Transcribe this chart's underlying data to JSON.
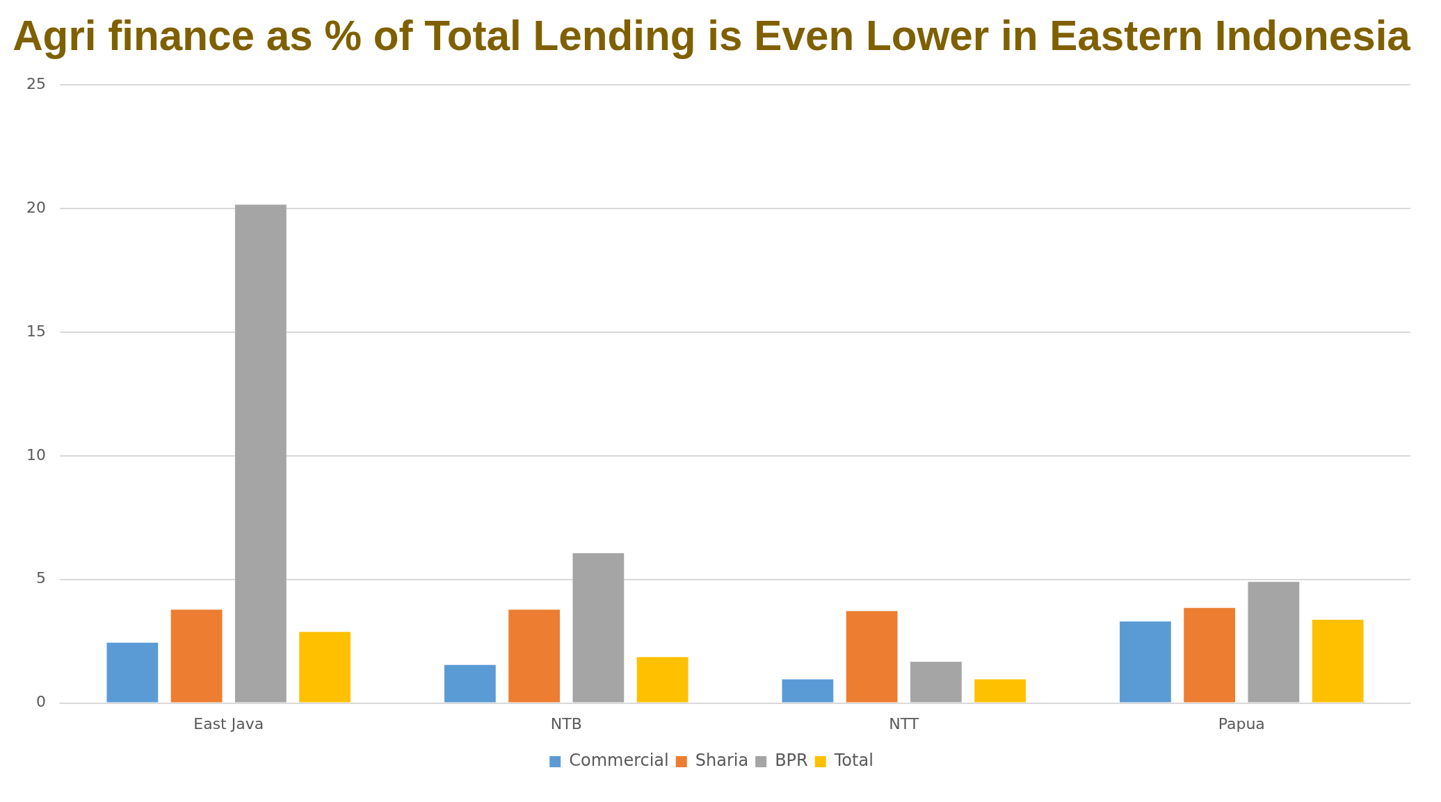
{
  "chart_data": {
    "type": "bar",
    "title": "Agri finance as % of Total Lending is Even Lower in Eastern Indonesia",
    "categories": [
      "East Java",
      "NTB",
      "NTT",
      "Papua"
    ],
    "series": [
      {
        "name": "Commercial",
        "color": "#5b9bd5",
        "values": [
          2.44,
          1.54,
          0.96,
          3.3
        ]
      },
      {
        "name": "Sharia",
        "color": "#ed7d31",
        "values": [
          3.78,
          3.78,
          3.72,
          3.85
        ]
      },
      {
        "name": "BPR",
        "color": "#a5a5a5",
        "values": [
          20.16,
          6.06,
          1.67,
          4.9
        ]
      },
      {
        "name": "Total",
        "color": "#ffc000",
        "values": [
          2.88,
          1.86,
          0.96,
          3.37
        ]
      }
    ],
    "ylim": [
      0,
      25
    ],
    "yticks": [
      0,
      5,
      10,
      15,
      20,
      25
    ],
    "grid": "y",
    "legend": "bottom"
  }
}
